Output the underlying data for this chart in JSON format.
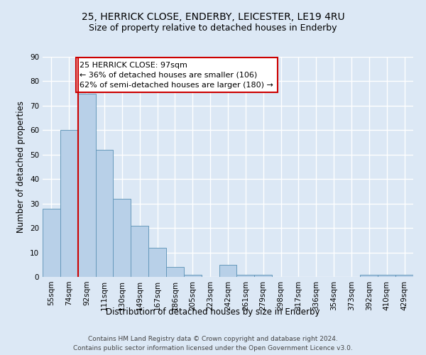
{
  "title": "25, HERRICK CLOSE, ENDERBY, LEICESTER, LE19 4RU",
  "subtitle": "Size of property relative to detached houses in Enderby",
  "xlabel": "Distribution of detached houses by size in Enderby",
  "ylabel": "Number of detached properties",
  "bar_labels": [
    "55sqm",
    "74sqm",
    "92sqm",
    "111sqm",
    "130sqm",
    "149sqm",
    "167sqm",
    "186sqm",
    "205sqm",
    "223sqm",
    "242sqm",
    "261sqm",
    "279sqm",
    "298sqm",
    "317sqm",
    "336sqm",
    "354sqm",
    "373sqm",
    "392sqm",
    "410sqm",
    "429sqm"
  ],
  "bar_values": [
    28,
    60,
    75,
    52,
    32,
    21,
    12,
    4,
    1,
    0,
    5,
    1,
    1,
    0,
    0,
    0,
    0,
    0,
    1,
    1,
    1
  ],
  "bar_color": "#b8d0e8",
  "bar_edge_color": "#6699bb",
  "ylim": [
    0,
    90
  ],
  "yticks": [
    0,
    10,
    20,
    30,
    40,
    50,
    60,
    70,
    80,
    90
  ],
  "property_line_color": "#cc0000",
  "annotation_text": "25 HERRICK CLOSE: 97sqm\n← 36% of detached houses are smaller (106)\n62% of semi-detached houses are larger (180) →",
  "annotation_box_facecolor": "#ffffff",
  "annotation_box_edgecolor": "#cc0000",
  "footer_line1": "Contains HM Land Registry data © Crown copyright and database right 2024.",
  "footer_line2": "Contains public sector information licensed under the Open Government Licence v3.0.",
  "background_color": "#dce8f5",
  "plot_background_color": "#dce8f5",
  "grid_color": "#ffffff",
  "title_fontsize": 10,
  "subtitle_fontsize": 9,
  "axis_label_fontsize": 8.5,
  "tick_fontsize": 7.5,
  "annotation_fontsize": 8,
  "footer_fontsize": 6.5
}
